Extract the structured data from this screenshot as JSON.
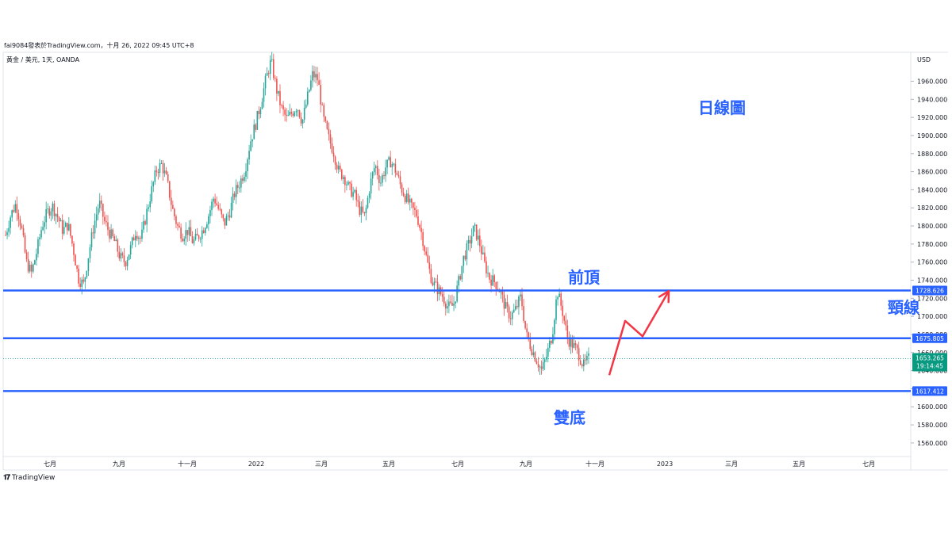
{
  "header": {
    "publisher_line": "fai9084發表於TradingView.com，十月 26, 2022 09:45 UTC+8",
    "symbol_line": "黃金 / 美元, 1天, OANDA",
    "brand": "TradingView"
  },
  "colors": {
    "up": "#26a69a",
    "down": "#ef5350",
    "level_line": "#2962ff",
    "annotation": "#2962ff",
    "arrow": "#f23645",
    "price_tag": "#089981"
  },
  "chart_data": {
    "type": "candlestick",
    "currency_label": "USD",
    "ylim": [
      1545,
      1992
    ],
    "y_ticks": [
      1560,
      1580,
      1600,
      1620,
      1640,
      1660,
      1680,
      1700,
      1720,
      1740,
      1760,
      1780,
      1800,
      1820,
      1840,
      1860,
      1880,
      1900,
      1920,
      1940,
      1960
    ],
    "x_ticks": [
      "七月",
      "九月",
      "十一月",
      "2022",
      "三月",
      "五月",
      "七月",
      "九月",
      "十一月",
      "2023",
      "三月",
      "五月",
      "七月"
    ],
    "price_path": [
      1790,
      1812,
      1825,
      1800,
      1760,
      1748,
      1772,
      1800,
      1815,
      1822,
      1810,
      1795,
      1802,
      1775,
      1742,
      1735,
      1770,
      1802,
      1826,
      1805,
      1792,
      1782,
      1765,
      1760,
      1775,
      1795,
      1785,
      1812,
      1838,
      1862,
      1868,
      1850,
      1820,
      1800,
      1790,
      1795,
      1782,
      1788,
      1797,
      1812,
      1832,
      1817,
      1802,
      1815,
      1836,
      1848,
      1862,
      1893,
      1912,
      1935,
      1962,
      1983,
      1952,
      1930,
      1918,
      1925,
      1933,
      1915,
      1942,
      1968,
      1962,
      1920,
      1898,
      1882,
      1860,
      1855,
      1841,
      1835,
      1818,
      1810,
      1845,
      1868,
      1848,
      1865,
      1872,
      1860,
      1842,
      1830,
      1820,
      1812,
      1790,
      1760,
      1738,
      1730,
      1722,
      1710,
      1712,
      1737,
      1765,
      1780,
      1798,
      1782,
      1758,
      1742,
      1738,
      1728,
      1710,
      1700,
      1708,
      1722,
      1680,
      1665,
      1652,
      1640,
      1658,
      1680,
      1728,
      1705,
      1675,
      1668,
      1660,
      1645,
      1653
    ],
    "levels": [
      {
        "value": 1728.626,
        "label": "1728.626"
      },
      {
        "value": 1675.805,
        "label": "1675.805"
      },
      {
        "value": 1617.412,
        "label": "1617.412"
      }
    ],
    "last_price": {
      "value": 1653.265,
      "label": "1653.265",
      "countdown": "19:14:45"
    },
    "annotations": {
      "title": "日線圖",
      "top": "前頂",
      "neckline": "頸線",
      "bottom": "雙底"
    },
    "projection_path": [
      1635,
      1695,
      1678,
      1728
    ]
  }
}
